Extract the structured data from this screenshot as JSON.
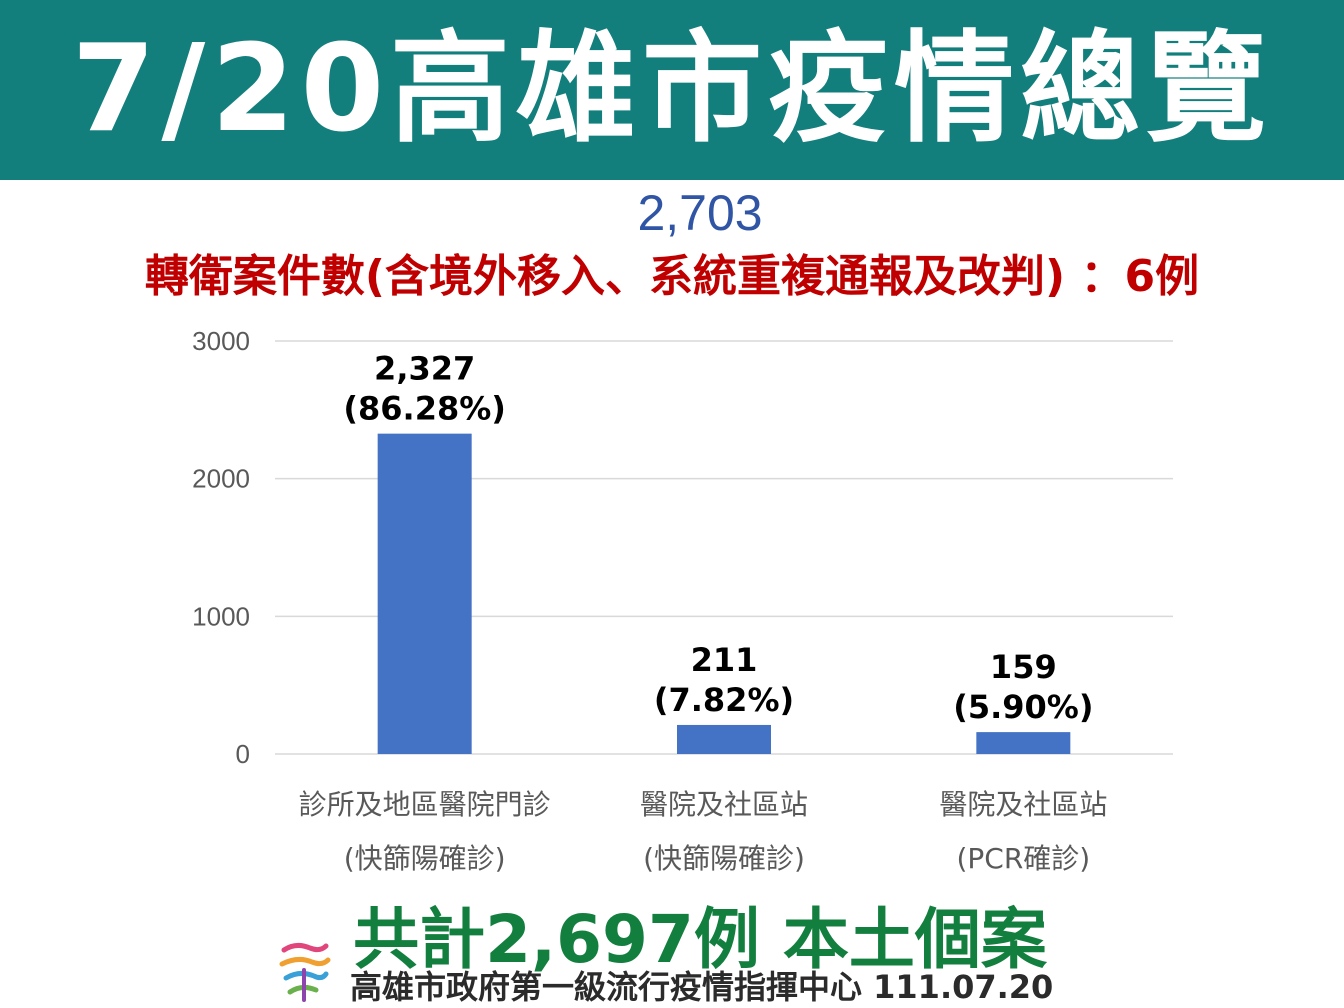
{
  "header": {
    "title": "7/20高雄市疫情總覽"
  },
  "total": "2,703",
  "transfer_note": "轉衛案件數(含境外移入、系統重複通報及改判) ：6例",
  "summary": "共計2,697例 本土個案",
  "footer": {
    "text": "高雄市政府第一級流行疫情指揮中心 111.07.20",
    "logo_icon": "kaohsiung-city-logo"
  },
  "colors": {
    "header_bg": "#137f7d",
    "bar": "#4472c4",
    "note_red": "#c00000",
    "summary_green": "#137f3f",
    "total_blue": "#2f55a4"
  },
  "chart_data": {
    "type": "bar",
    "title": "",
    "xlabel": "",
    "ylabel": "",
    "ylim": [
      0,
      3000
    ],
    "yticks": [
      "3000",
      "2000",
      "1000",
      "0"
    ],
    "ytick_values": [
      3000,
      2000,
      1000,
      0
    ],
    "grid": true,
    "categories": [
      [
        "診所及地區醫院門診",
        "(快篩陽確診)"
      ],
      [
        "醫院及社區站",
        "(快篩陽確診)"
      ],
      [
        "醫院及社區站",
        "(PCR確診)"
      ]
    ],
    "values": [
      2327,
      211,
      159
    ],
    "value_labels": [
      "2,327",
      "211",
      "159"
    ],
    "percent_labels": [
      "(86.28%)",
      "(7.82%)",
      "(5.90%)"
    ]
  }
}
